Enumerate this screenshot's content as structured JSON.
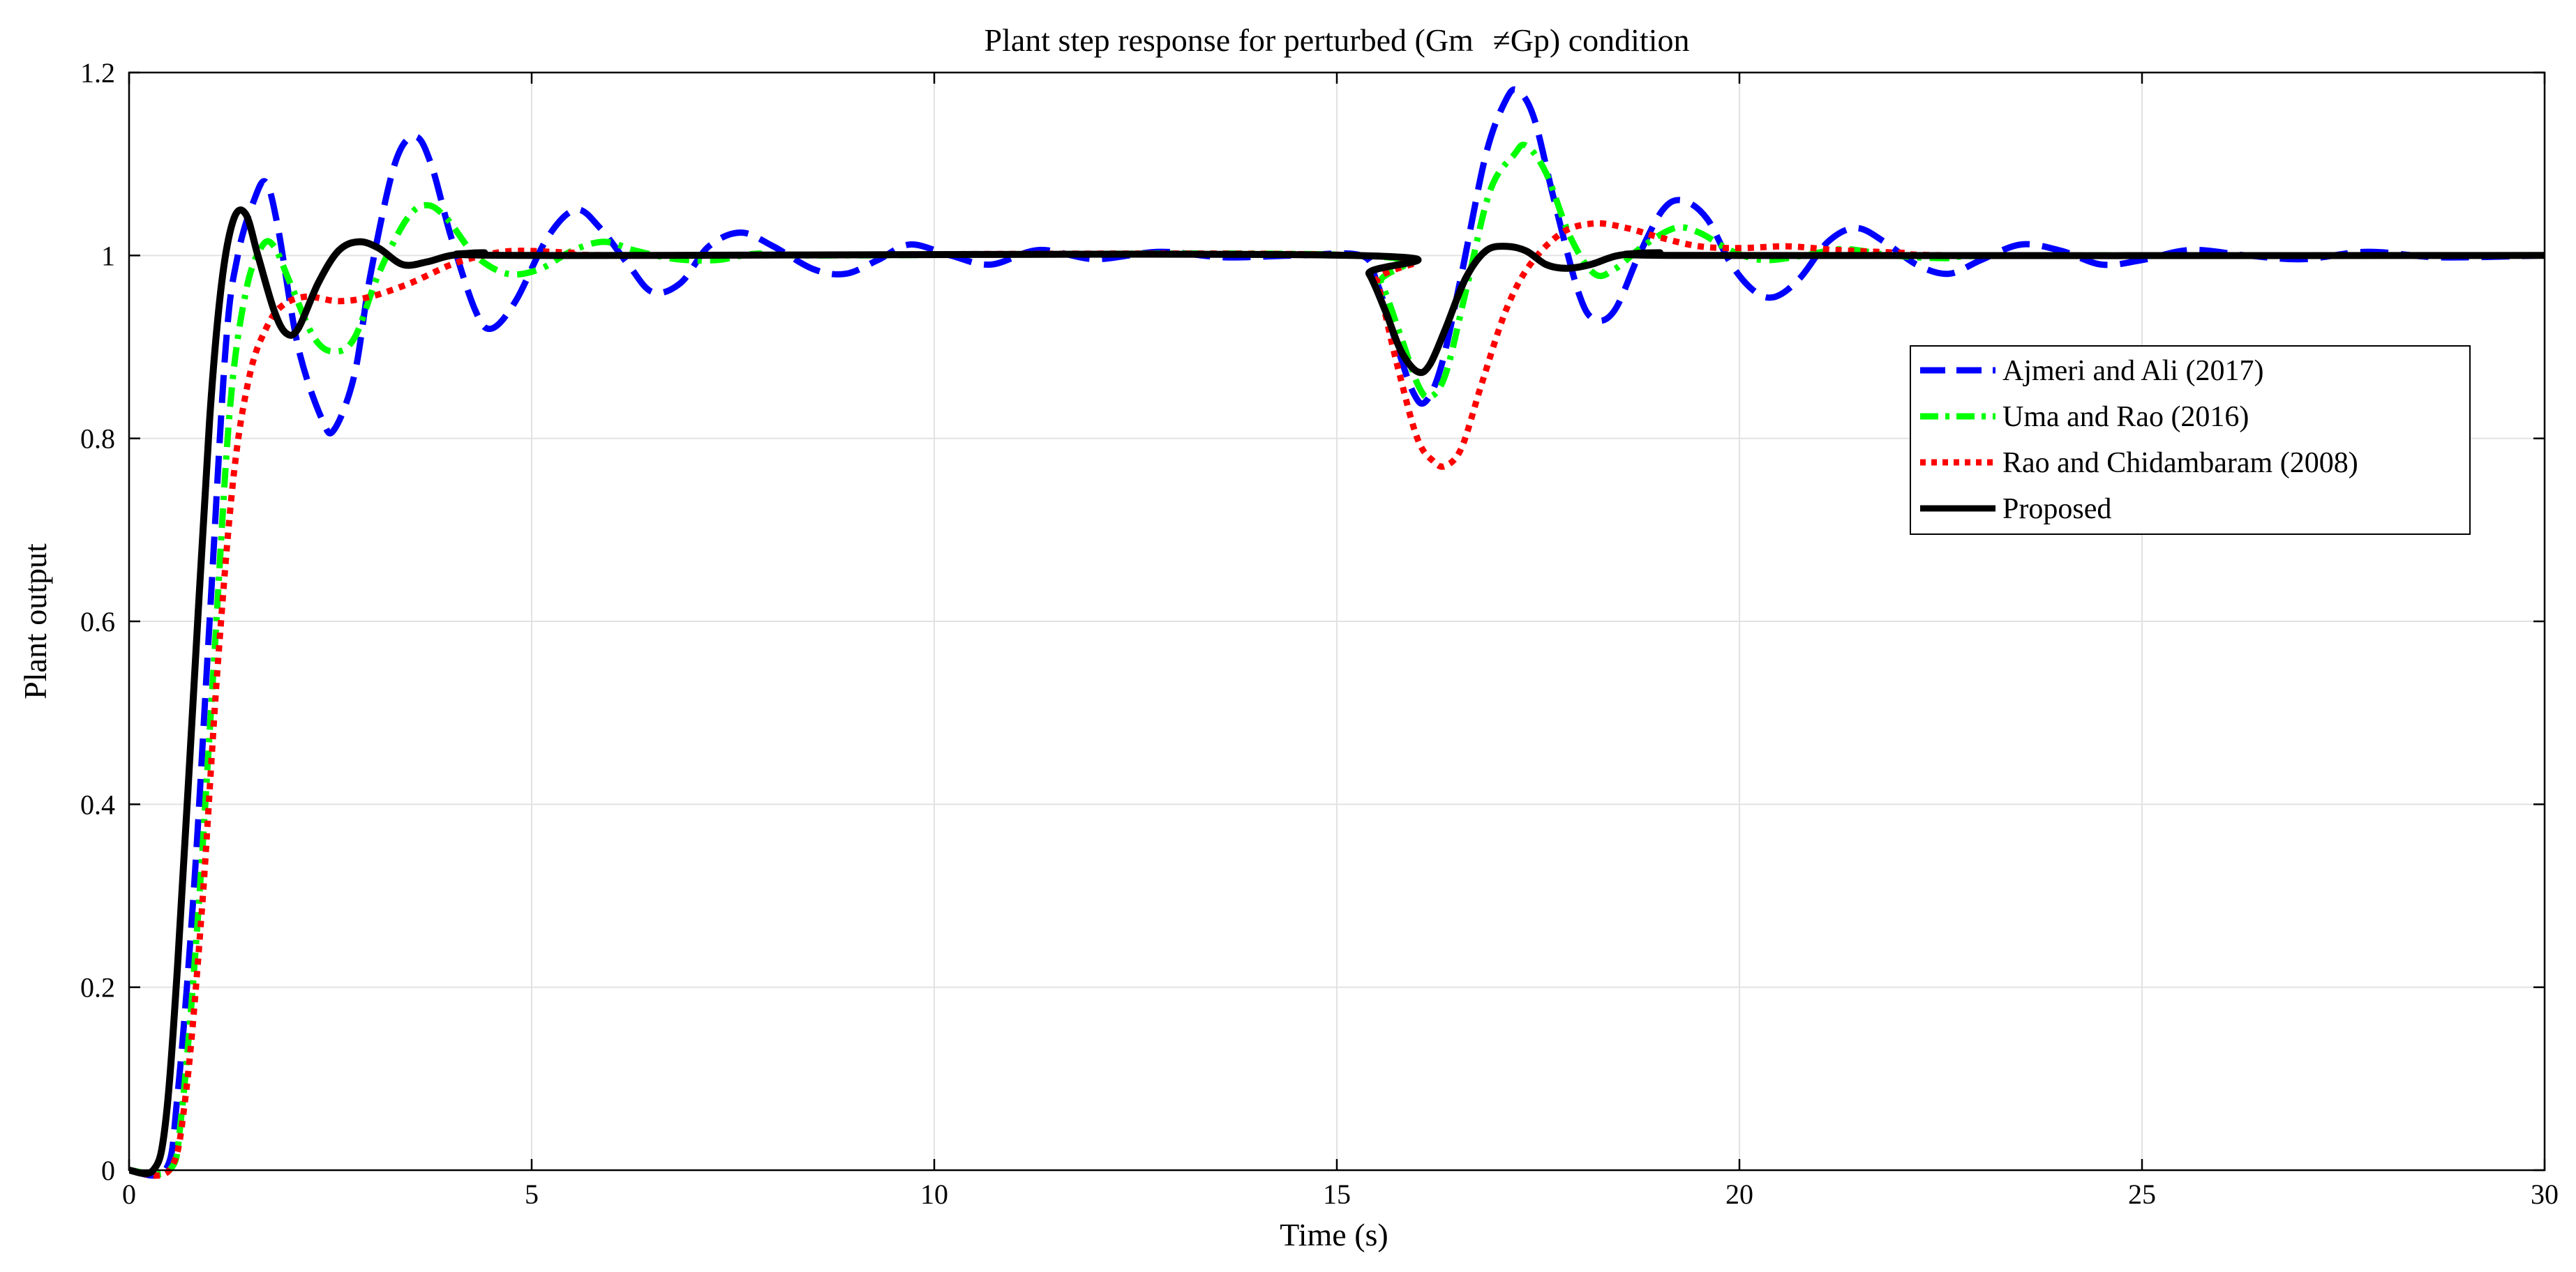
{
  "chart_data": {
    "type": "line",
    "title": "Plant step response for perturbed (Gm   ≠Gp) condition",
    "xlabel": "Time (s)",
    "ylabel": "Plant output",
    "xlim": [
      0,
      30
    ],
    "ylim": [
      0,
      1.2
    ],
    "xticks": [
      0,
      5,
      10,
      15,
      20,
      25,
      30
    ],
    "yticks": [
      0,
      0.2,
      0.4,
      0.6,
      0.8,
      1,
      1.2
    ],
    "xtick_labels": [
      "0",
      "5",
      "10",
      "15",
      "20",
      "25",
      "30"
    ],
    "ytick_labels": [
      "0",
      "0.2",
      "0.4",
      "0.6",
      "0.8",
      "1",
      "1.2"
    ],
    "grid": true,
    "legend_position": "right",
    "series": [
      {
        "name": "Ajmeri and Ali (2017)",
        "color": "#0000ff",
        "style": "dashed",
        "points": [
          [
            0,
            0
          ],
          [
            0.45,
            0
          ],
          [
            0.6,
            0.08
          ],
          [
            0.8,
            0.3
          ],
          [
            1.0,
            0.6
          ],
          [
            1.2,
            0.9
          ],
          [
            1.35,
            1.0
          ],
          [
            1.55,
            1.06
          ],
          [
            1.7,
            1.08
          ],
          [
            1.85,
            1.03
          ],
          [
            2.1,
            0.9
          ],
          [
            2.4,
            0.82
          ],
          [
            2.55,
            0.81
          ],
          [
            2.8,
            0.87
          ],
          [
            3.0,
            0.98
          ],
          [
            3.3,
            1.1
          ],
          [
            3.55,
            1.13
          ],
          [
            3.75,
            1.1
          ],
          [
            4.0,
            1.02
          ],
          [
            4.3,
            0.94
          ],
          [
            4.5,
            0.92
          ],
          [
            4.8,
            0.95
          ],
          [
            5.2,
            1.02
          ],
          [
            5.55,
            1.05
          ],
          [
            5.85,
            1.03
          ],
          [
            6.2,
            0.99
          ],
          [
            6.5,
            0.96
          ],
          [
            6.85,
            0.97
          ],
          [
            7.2,
            1.01
          ],
          [
            7.6,
            1.025
          ],
          [
            8.0,
            1.01
          ],
          [
            8.5,
            0.985
          ],
          [
            8.9,
            0.98
          ],
          [
            9.3,
            0.995
          ],
          [
            9.7,
            1.012
          ],
          [
            10.2,
            1.0
          ],
          [
            10.7,
            0.99
          ],
          [
            11.3,
            1.006
          ],
          [
            12.0,
            0.996
          ],
          [
            12.8,
            1.004
          ],
          [
            13.6,
            0.998
          ],
          [
            14.5,
            1.0
          ],
          [
            15.3,
            1.0
          ],
          [
            15.5,
            0.97
          ],
          [
            15.75,
            0.9
          ],
          [
            15.95,
            0.85
          ],
          [
            16.1,
            0.84
          ],
          [
            16.3,
            0.88
          ],
          [
            16.55,
            0.98
          ],
          [
            16.85,
            1.11
          ],
          [
            17.1,
            1.17
          ],
          [
            17.25,
            1.18
          ],
          [
            17.45,
            1.15
          ],
          [
            17.7,
            1.06
          ],
          [
            18.0,
            0.96
          ],
          [
            18.2,
            0.93
          ],
          [
            18.45,
            0.94
          ],
          [
            18.75,
            1.0
          ],
          [
            19.05,
            1.05
          ],
          [
            19.3,
            1.06
          ],
          [
            19.6,
            1.04
          ],
          [
            19.9,
            0.99
          ],
          [
            20.2,
            0.96
          ],
          [
            20.45,
            0.955
          ],
          [
            20.75,
            0.975
          ],
          [
            21.1,
            1.015
          ],
          [
            21.45,
            1.03
          ],
          [
            21.8,
            1.015
          ],
          [
            22.2,
            0.99
          ],
          [
            22.6,
            0.98
          ],
          [
            23.0,
            0.995
          ],
          [
            23.5,
            1.012
          ],
          [
            24.0,
            1.005
          ],
          [
            24.5,
            0.99
          ],
          [
            25.0,
            0.995
          ],
          [
            25.6,
            1.006
          ],
          [
            26.3,
            1.0
          ],
          [
            27.0,
            0.996
          ],
          [
            27.8,
            1.004
          ],
          [
            28.7,
            0.998
          ],
          [
            30,
            1.0
          ]
        ]
      },
      {
        "name": "Uma and Rao (2016)",
        "color": "#00ff00",
        "style": "dash-dot",
        "points": [
          [
            0,
            0
          ],
          [
            0.5,
            0
          ],
          [
            0.65,
            0.06
          ],
          [
            0.85,
            0.27
          ],
          [
            1.05,
            0.55
          ],
          [
            1.25,
            0.83
          ],
          [
            1.45,
            0.96
          ],
          [
            1.65,
            1.01
          ],
          [
            1.8,
            1.01
          ],
          [
            2.0,
            0.97
          ],
          [
            2.3,
            0.91
          ],
          [
            2.55,
            0.895
          ],
          [
            2.8,
            0.91
          ],
          [
            3.1,
            0.98
          ],
          [
            3.45,
            1.04
          ],
          [
            3.7,
            1.055
          ],
          [
            3.95,
            1.04
          ],
          [
            4.3,
            1.0
          ],
          [
            4.7,
            0.98
          ],
          [
            5.1,
            0.985
          ],
          [
            5.5,
            1.005
          ],
          [
            5.9,
            1.015
          ],
          [
            6.3,
            1.005
          ],
          [
            6.8,
            0.996
          ],
          [
            7.3,
            0.995
          ],
          [
            7.8,
            1.002
          ],
          [
            8.5,
            1.0
          ],
          [
            15.3,
            1.0
          ],
          [
            15.55,
            0.97
          ],
          [
            15.8,
            0.91
          ],
          [
            16.0,
            0.86
          ],
          [
            16.15,
            0.845
          ],
          [
            16.35,
            0.87
          ],
          [
            16.6,
            0.96
          ],
          [
            16.9,
            1.07
          ],
          [
            17.2,
            1.11
          ],
          [
            17.35,
            1.12
          ],
          [
            17.6,
            1.09
          ],
          [
            17.9,
            1.02
          ],
          [
            18.2,
            0.98
          ],
          [
            18.45,
            0.985
          ],
          [
            18.8,
            1.01
          ],
          [
            19.2,
            1.03
          ],
          [
            19.5,
            1.025
          ],
          [
            19.9,
            1.005
          ],
          [
            20.3,
            0.995
          ],
          [
            20.8,
            1.0
          ],
          [
            21.3,
            1.007
          ],
          [
            21.9,
            1.0
          ],
          [
            22.6,
            0.997
          ],
          [
            23.5,
            1.0
          ],
          [
            30,
            1.0
          ]
        ]
      },
      {
        "name": "Rao and Chidambaram (2008)",
        "color": "#ff0000",
        "style": "dotted",
        "points": [
          [
            0,
            0
          ],
          [
            0.5,
            0
          ],
          [
            0.7,
            0.08
          ],
          [
            0.9,
            0.28
          ],
          [
            1.1,
            0.55
          ],
          [
            1.3,
            0.76
          ],
          [
            1.5,
            0.87
          ],
          [
            1.7,
            0.92
          ],
          [
            1.9,
            0.945
          ],
          [
            2.2,
            0.955
          ],
          [
            2.6,
            0.95
          ],
          [
            3.0,
            0.955
          ],
          [
            3.5,
            0.97
          ],
          [
            4.0,
            0.99
          ],
          [
            4.4,
            1.0
          ],
          [
            4.8,
            1.005
          ],
          [
            5.5,
            1.003
          ],
          [
            6.5,
            1.0
          ],
          [
            15.3,
            1.0
          ],
          [
            15.5,
            0.97
          ],
          [
            15.75,
            0.88
          ],
          [
            16.0,
            0.8
          ],
          [
            16.2,
            0.775
          ],
          [
            16.35,
            0.77
          ],
          [
            16.55,
            0.79
          ],
          [
            16.8,
            0.86
          ],
          [
            17.1,
            0.94
          ],
          [
            17.4,
            0.99
          ],
          [
            17.8,
            1.025
          ],
          [
            18.2,
            1.035
          ],
          [
            18.6,
            1.03
          ],
          [
            19.0,
            1.02
          ],
          [
            19.5,
            1.01
          ],
          [
            20.0,
            1.008
          ],
          [
            20.6,
            1.01
          ],
          [
            21.2,
            1.006
          ],
          [
            22.0,
            1.003
          ],
          [
            23.0,
            1.0
          ],
          [
            30,
            1.0
          ]
        ]
      },
      {
        "name": "Proposed",
        "color": "#000000",
        "style": "solid",
        "points": [
          [
            0,
            0
          ],
          [
            0.3,
            0
          ],
          [
            0.45,
            0.05
          ],
          [
            0.6,
            0.22
          ],
          [
            0.8,
            0.52
          ],
          [
            1.0,
            0.82
          ],
          [
            1.15,
            0.97
          ],
          [
            1.3,
            1.04
          ],
          [
            1.45,
            1.045
          ],
          [
            1.6,
            1.0
          ],
          [
            1.8,
            0.94
          ],
          [
            1.95,
            0.915
          ],
          [
            2.1,
            0.92
          ],
          [
            2.35,
            0.97
          ],
          [
            2.6,
            1.005
          ],
          [
            2.85,
            1.015
          ],
          [
            3.1,
            1.008
          ],
          [
            3.4,
            0.99
          ],
          [
            3.7,
            0.993
          ],
          [
            4.0,
            1.0
          ],
          [
            4.4,
            1.003
          ],
          [
            5.0,
            1.0
          ],
          [
            15.2,
            1.0
          ],
          [
            15.4,
            0.98
          ],
          [
            15.6,
            0.94
          ],
          [
            15.8,
            0.895
          ],
          [
            16.0,
            0.873
          ],
          [
            16.15,
            0.88
          ],
          [
            16.35,
            0.92
          ],
          [
            16.6,
            0.975
          ],
          [
            16.85,
            1.005
          ],
          [
            17.1,
            1.01
          ],
          [
            17.35,
            1.005
          ],
          [
            17.6,
            0.99
          ],
          [
            17.85,
            0.986
          ],
          [
            18.15,
            0.99
          ],
          [
            18.5,
            1.0
          ],
          [
            19.0,
            1.003
          ],
          [
            19.5,
            1.0
          ],
          [
            30,
            1.0
          ]
        ]
      }
    ]
  }
}
